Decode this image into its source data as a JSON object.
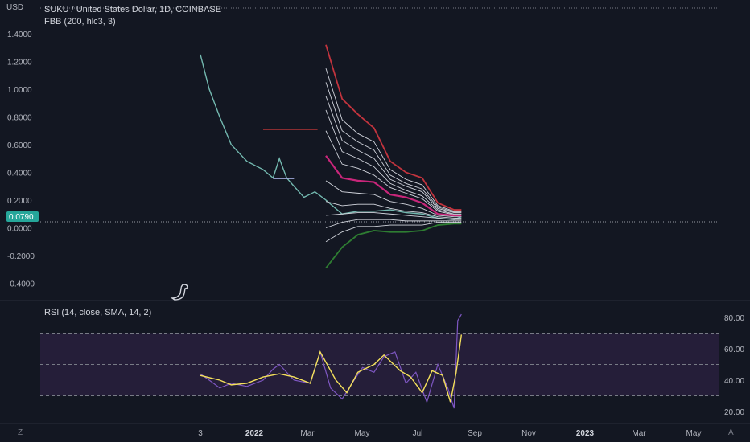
{
  "header": {
    "currency": "USD",
    "symbol_title": "SUKU / United States Dollar, 1D, COINBASE",
    "indicator_label": "FBB (200, hlc3, 3)",
    "rsi_label": "RSI (14, close, SMA, 14, 2)",
    "corner_left": "Z",
    "corner_right": "A"
  },
  "colors": {
    "background": "#131722",
    "upper_band": "#c2343e",
    "lower_band": "#2e7d32",
    "basis": "#c8267a",
    "fib_lines": "#d1d4dc",
    "price_line": "#7ecbc0",
    "rsi_line": "#7e57c2",
    "rsi_ma": "#f5e15b",
    "rsi_band_fill": "#2a2140",
    "marker": "#d23b3b",
    "last_price_bg": "#26a69a"
  },
  "chart_data": [
    {
      "type": "line",
      "title": "SUKU / United States Dollar, 1D, COINBASE",
      "ylabel": "USD",
      "ylim": [
        -0.4,
        1.55
      ],
      "y_ticks": [
        "1.4000",
        "1.2000",
        "1.0000",
        "0.8000",
        "0.6000",
        "0.4000",
        "0.2000",
        "0.0000",
        "-0.2000",
        "-0.4000"
      ],
      "y_tick_values": [
        1.4,
        1.2,
        1.0,
        0.8,
        0.6,
        0.4,
        0.2,
        0.0,
        -0.2,
        -0.4
      ],
      "x_labels": [
        "3",
        "2022",
        "Mar",
        "May",
        "Jul",
        "Sep",
        "Nov",
        "2023",
        "Mar",
        "May"
      ],
      "last_price": "0.0790",
      "price_series": {
        "name": "SUKU",
        "x": [
          "2021-09-03",
          "2021-09-20",
          "2021-10-10",
          "2021-11-01",
          "2021-12-01",
          "2022-01-01",
          "2022-01-20",
          "2022-02-01",
          "2022-02-15",
          "2022-03-01",
          "2022-03-20",
          "2022-04-10",
          "2022-05-01",
          "2022-06-01",
          "2022-07-01",
          "2022-08-01",
          "2022-09-01",
          "2022-10-01",
          "2022-11-01",
          "2022-12-01",
          "2023-01-01",
          "2023-01-15"
        ],
        "y": [
          1.25,
          1.0,
          0.8,
          0.6,
          0.48,
          0.42,
          0.36,
          0.5,
          0.36,
          0.3,
          0.22,
          0.26,
          0.2,
          0.1,
          0.12,
          0.12,
          0.13,
          0.11,
          0.1,
          0.07,
          0.06,
          0.08
        ]
      },
      "bands": {
        "x": [
          "2022-05-01",
          "2022-06-01",
          "2022-07-01",
          "2022-08-01",
          "2022-09-01",
          "2022-10-01",
          "2022-11-01",
          "2022-12-01",
          "2023-01-01",
          "2023-01-15"
        ],
        "upper": [
          1.32,
          0.93,
          0.82,
          0.72,
          0.48,
          0.4,
          0.36,
          0.18,
          0.13,
          0.13
        ],
        "fib_upper": [
          [
            1.15,
            0.78,
            0.68,
            0.62,
            0.42,
            0.35,
            0.31,
            0.16,
            0.12,
            0.12
          ],
          [
            1.05,
            0.7,
            0.62,
            0.56,
            0.38,
            0.32,
            0.28,
            0.15,
            0.115,
            0.115
          ],
          [
            0.95,
            0.63,
            0.56,
            0.5,
            0.35,
            0.3,
            0.26,
            0.14,
            0.11,
            0.11
          ],
          [
            0.85,
            0.55,
            0.5,
            0.44,
            0.32,
            0.27,
            0.23,
            0.13,
            0.1,
            0.1
          ],
          [
            0.7,
            0.46,
            0.43,
            0.38,
            0.29,
            0.25,
            0.21,
            0.12,
            0.095,
            0.095
          ]
        ],
        "basis": [
          0.52,
          0.36,
          0.34,
          0.33,
          0.24,
          0.22,
          0.18,
          0.1,
          0.09,
          0.09
        ],
        "fib_lower": [
          [
            0.34,
            0.26,
            0.25,
            0.24,
            0.19,
            0.17,
            0.14,
            0.09,
            0.08,
            0.08
          ],
          [
            0.19,
            0.16,
            0.17,
            0.17,
            0.14,
            0.12,
            0.11,
            0.08,
            0.07,
            0.07
          ],
          [
            0.09,
            0.1,
            0.11,
            0.11,
            0.1,
            0.09,
            0.08,
            0.07,
            0.06,
            0.06
          ],
          [
            0.0,
            0.04,
            0.06,
            0.06,
            0.06,
            0.05,
            0.05,
            0.05,
            0.05,
            0.05
          ],
          [
            -0.1,
            -0.03,
            0.01,
            0.01,
            0.02,
            0.02,
            0.02,
            0.04,
            0.04,
            0.04
          ]
        ],
        "lower": [
          -0.29,
          -0.14,
          -0.05,
          -0.02,
          -0.03,
          -0.03,
          -0.02,
          0.02,
          0.03,
          0.03
        ]
      },
      "horizontal_marker": {
        "value": 0.71,
        "x_start": "2022-01-01",
        "x_end": "2022-04-15"
      },
      "horizontal_marker_2": {
        "value": 0.355,
        "x_start": "2022-01-20",
        "x_end": "2022-03-01"
      }
    },
    {
      "type": "line",
      "title": "RSI (14, close, SMA, 14, 2)",
      "ylim": [
        17,
        84
      ],
      "y_ticks": [
        "80.00",
        "60.00",
        "40.00",
        "20.00"
      ],
      "y_tick_values": [
        80,
        60,
        40,
        20
      ],
      "bands": {
        "upper": 70,
        "middle": 50,
        "lower": 30
      },
      "rsi": {
        "x": [
          "2021-09-03",
          "2021-09-20",
          "2021-10-10",
          "2021-11-01",
          "2021-12-01",
          "2022-01-01",
          "2022-01-20",
          "2022-02-01",
          "2022-03-01",
          "2022-04-01",
          "2022-04-20",
          "2022-05-10",
          "2022-06-01",
          "2022-06-20",
          "2022-07-10",
          "2022-08-01",
          "2022-08-20",
          "2022-09-10",
          "2022-10-01",
          "2022-10-20",
          "2022-11-10",
          "2022-12-01",
          "2022-12-20",
          "2023-01-01",
          "2023-01-08",
          "2023-01-15"
        ],
        "y": [
          44,
          40,
          35,
          38,
          36,
          40,
          47,
          50,
          40,
          38,
          58,
          35,
          28,
          38,
          48,
          45,
          55,
          58,
          38,
          45,
          26,
          50,
          35,
          22,
          78,
          82
        ]
      },
      "rsi_ma": {
        "x": [
          "2021-09-03",
          "2021-10-10",
          "2021-11-01",
          "2021-12-01",
          "2022-01-01",
          "2022-02-01",
          "2022-03-01",
          "2022-04-01",
          "2022-04-20",
          "2022-05-20",
          "2022-06-10",
          "2022-07-01",
          "2022-08-01",
          "2022-08-20",
          "2022-09-20",
          "2022-10-10",
          "2022-11-01",
          "2022-11-20",
          "2022-12-10",
          "2022-12-25",
          "2023-01-05",
          "2023-01-15"
        ],
        "y": [
          43,
          40,
          37,
          38,
          42,
          44,
          42,
          38,
          58,
          40,
          32,
          45,
          50,
          56,
          46,
          42,
          32,
          46,
          43,
          26,
          45,
          69
        ]
      }
    }
  ]
}
